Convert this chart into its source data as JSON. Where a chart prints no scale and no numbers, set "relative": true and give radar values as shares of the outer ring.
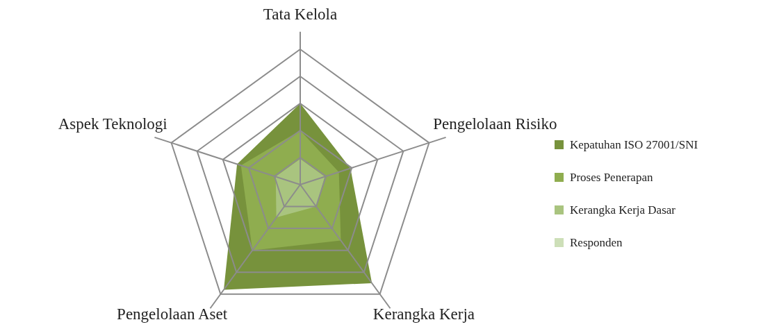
{
  "chart_data": {
    "type": "radar",
    "relative": true,
    "categories": [
      "Tata Kelola",
      "Pengelolaan Risiko",
      "Kerangka Kerja",
      "Pengelolaan Aset",
      "Aspek Teknologi"
    ],
    "series": [
      {
        "name": "Kepatuhan ISO 27001/SNI",
        "color": "#77923c",
        "values": [
          0.6,
          0.39,
          0.9,
          0.96,
          0.49
        ]
      },
      {
        "name": "Proses Penerapan",
        "color": "#8fad4f",
        "values": [
          0.4,
          0.3,
          0.51,
          0.6,
          0.46
        ]
      },
      {
        "name": "Kerangka Kerja Dasar",
        "color": "#a9c47f",
        "values": [
          0.19,
          0.19,
          0.2,
          0.3,
          0.19
        ]
      },
      {
        "name": "Responden",
        "color": "#cddfb8",
        "values": [
          null,
          null,
          null,
          null,
          null
        ]
      }
    ],
    "legend": "right"
  }
}
